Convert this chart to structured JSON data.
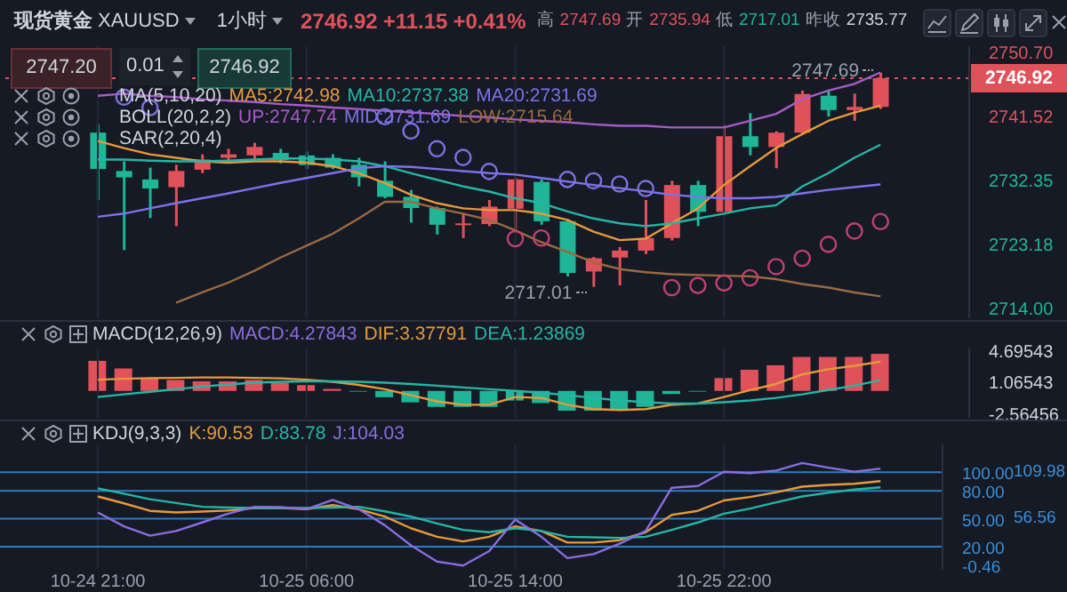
{
  "chart_data": [
    {
      "type": "candlestick",
      "title": "现货黄金",
      "subtitle": "XAUUSD",
      "categories": [
        null,
        null,
        null,
        null,
        null,
        null,
        null,
        null,
        null,
        null,
        null,
        null,
        null,
        null,
        null,
        null,
        null,
        null,
        null,
        null,
        null,
        null,
        null,
        null,
        null,
        null,
        null,
        null,
        null,
        null,
        null
      ],
      "ohlc": [
        [
          2739.11,
          2740.3,
          2729.45,
          2733.9
        ],
        [
          2733.61,
          2735.0,
          2722.28,
          2732.69
        ],
        [
          2732.4,
          2734.1,
          2726.85,
          2731.1
        ],
        [
          2731.29,
          2734.5,
          2725.7,
          2733.61
        ],
        [
          2733.8,
          2736.0,
          2733.3,
          2735.25
        ],
        [
          2735.5,
          2736.8,
          2735.0,
          2736.0
        ],
        [
          2735.85,
          2737.66,
          2735.0,
          2737.06
        ],
        [
          2736.2,
          2736.8,
          2734.7,
          2735.2
        ],
        [
          2735.85,
          2736.4,
          2733.9,
          2734.45
        ],
        [
          2735.5,
          2736.0,
          2733.9,
          2734.1
        ],
        [
          2734.5,
          2735.5,
          2731.4,
          2732.7
        ],
        [
          2732.2,
          2735.0,
          2729.7,
          2729.9
        ],
        [
          2729.9,
          2730.9,
          2726.2,
          2728.3
        ],
        [
          2728.3,
          2728.5,
          2724.5,
          2725.9
        ],
        [
          2726.0,
          2727.6,
          2724.0,
          2726.1
        ],
        [
          2726.0,
          2729.45,
          2725.7,
          2728.5
        ],
        [
          2728.2,
          2732.6,
          2725.25,
          2732.4
        ],
        [
          2732.05,
          2732.4,
          2725.9,
          2726.4
        ],
        [
          2726.4,
          2726.7,
          2718.5,
          2719.0
        ],
        [
          2719.2,
          2721.3,
          2717.01,
          2721.1
        ],
        [
          2721.2,
          2722.7,
          2717.2,
          2722.2
        ],
        [
          2722.2,
          2729.45,
          2721.7,
          2724.0
        ],
        [
          2724.0,
          2732.2,
          2723.65,
          2731.6
        ],
        [
          2731.6,
          2732.2,
          2725.7,
          2727.75
        ],
        [
          2727.75,
          2740.2,
          2727.5,
          2738.6
        ],
        [
          2738.6,
          2741.9,
          2735.85,
          2737.05
        ],
        [
          2737.05,
          2739.3,
          2734.0,
          2739.1
        ],
        [
          2739.1,
          2745.15,
          2738.9,
          2744.65
        ],
        [
          2744.4,
          2745.15,
          2741.4,
          2742.35
        ],
        [
          2742.35,
          2744.7,
          2740.8,
          2742.8
        ],
        [
          2742.8,
          2747.69,
          2742.5,
          2746.92
        ]
      ],
      "series": [
        {
          "name": "MA5:2742.98",
          "type": "line",
          "color": "#e59a3c",
          "values": [
            2737.9,
            2736.9,
            2736.0,
            2735.5,
            2735.0,
            2734.8,
            2735.0,
            2735.0,
            2734.8,
            2734.3,
            2733.3,
            2731.9,
            2730.2,
            2729.0,
            2728.25,
            2728.0,
            2728.0,
            2727.5,
            2726.6,
            2724.9,
            2723.7,
            2723.9,
            2726.1,
            2728.25,
            2731.6,
            2734.3,
            2736.9,
            2738.9,
            2740.8,
            2742.0,
            2742.98
          ]
        },
        {
          "name": "MA10:2737.38",
          "type": "line",
          "color": "#26b5a5",
          "values": [
            2735.25,
            2735.25,
            2735.1,
            2735.0,
            2735.0,
            2735.1,
            2735.25,
            2735.4,
            2735.4,
            2735.25,
            2735.0,
            2734.3,
            2733.3,
            2732.35,
            2731.4,
            2730.66,
            2729.7,
            2729.0,
            2727.8,
            2726.8,
            2726.1,
            2725.7,
            2726.1,
            2726.8,
            2727.5,
            2728.25,
            2728.7,
            2731.4,
            2733.3,
            2735.5,
            2737.38
          ]
        },
        {
          "name": "MA20:2731.69",
          "type": "line",
          "color": "#7b73e8",
          "values": [
            2727.04,
            2727.5,
            2728.25,
            2729.0,
            2729.7,
            2730.4,
            2731.15,
            2731.9,
            2732.6,
            2733.3,
            2734.0,
            2734.3,
            2734.2,
            2733.9,
            2733.6,
            2733.3,
            2733.1,
            2732.6,
            2732.1,
            2731.6,
            2731.15,
            2730.7,
            2730.2,
            2729.9,
            2729.7,
            2729.7,
            2729.9,
            2730.4,
            2730.9,
            2731.3,
            2731.69
          ]
        },
        {
          "name": "UP:2747.74",
          "type": "line",
          "color": "#a75cc5",
          "values": [
            2744.4,
            2744.7,
            2744.4,
            2744.2,
            2743.9,
            2743.7,
            2743.5,
            2743.2,
            2743.0,
            2742.7,
            2742.5,
            2742.25,
            2742.0,
            2741.8,
            2741.5,
            2741.3,
            2741.0,
            2740.8,
            2740.6,
            2740.3,
            2740.1,
            2740.1,
            2739.85,
            2739.85,
            2739.85,
            2740.8,
            2741.8,
            2743.9,
            2745.15,
            2746.1,
            2747.74
          ]
        },
        {
          "name": "LOW:2715.64",
          "type": "line",
          "color": "#9a6a40",
          "values": [
            null,
            null,
            null,
            2714.7,
            2716.2,
            2717.6,
            2719.3,
            2721.2,
            2722.9,
            2724.6,
            2726.8,
            2729.2,
            2729.2,
            2728.25,
            2727.5,
            2726.6,
            2725.1,
            2723.4,
            2722.0,
            2720.5,
            2719.55,
            2719.1,
            2718.8,
            2718.7,
            2718.6,
            2718.5,
            2718.1,
            2717.4,
            2716.9,
            2716.2,
            2715.64
          ]
        },
        {
          "type": "scatter",
          "color": "#8070e0",
          "values": [
            null,
            2744.2,
            2742.7,
            null,
            null,
            null,
            null,
            null,
            null,
            null,
            null,
            2741.4,
            2739.35,
            2736.8,
            2735.55,
            2733.55,
            null,
            null,
            2732.4,
            2732.2,
            2731.75,
            2731.1,
            null,
            null,
            null,
            null,
            null,
            null,
            null,
            null,
            null
          ]
        },
        {
          "type": "scatter",
          "color": "#c0406e",
          "values": [
            null,
            null,
            null,
            null,
            null,
            null,
            null,
            null,
            null,
            null,
            null,
            null,
            null,
            null,
            null,
            null,
            2723.9,
            2724.0,
            null,
            null,
            null,
            null,
            2716.9,
            2717.2,
            2717.55,
            2718.3,
            2719.9,
            2721.1,
            2723.1,
            2725.0,
            2726.36
          ]
        }
      ],
      "ylim": [
        2712.5,
        2751.5
      ],
      "yticks": [
        {
          "value": 2714,
          "label": "2714.00"
        },
        2723.18,
        2732.35,
        2741.52,
        {
          "value": 2750.7,
          "label": "2750.70"
        }
      ],
      "ref_lines": [
        {
          "axis": "y",
          "value": 2746.92,
          "label": "2746.92",
          "color": "#e0525a",
          "line_style": "dotted"
        }
      ],
      "annotations": [
        "1小时",
        "2746.92",
        "+11.15",
        "+0.41%",
        "高",
        "2747.69",
        "开",
        "2735.94",
        "低",
        "2717.01",
        "昨收",
        "2735.77",
        "2747.20",
        "0.01",
        "2746.92",
        "MA(5,10,20)",
        "BOLL(20,2,2)",
        "MID:2731.69",
        "SAR(2,20,4)",
        {
          "text": "2747.69",
          "y": 2747.69
        },
        "2717.01"
      ],
      "grid": "x",
      "tick_labels": "y"
    },
    {
      "type": "bar",
      "categories": [
        null,
        null,
        null,
        null,
        null,
        null,
        null,
        null,
        null,
        null,
        null,
        null,
        null,
        null,
        null,
        null,
        null,
        null,
        null,
        null,
        null,
        null,
        null,
        null,
        null,
        null,
        null,
        null,
        null,
        null,
        null
      ],
      "series": [
        {
          "name": "MACD:4.27843",
          "colors": [
            "#e0525a",
            "#e0525a",
            "#e0525a",
            "#e0525a",
            "#e0525a",
            "#e0525a",
            "#e0525a",
            "#e0525a",
            "#e0525a",
            "#e0525a",
            "#1fb596",
            "#1fb596",
            "#1fb596",
            "#1fb596",
            "#1fb596",
            "#1fb596",
            "#1fb596",
            "#1fb596",
            "#1fb596",
            "#1fb596",
            "#1fb596",
            "#1fb596",
            "#1fb596",
            "#1fb596",
            "#e0525a",
            "#e0525a",
            "#e0525a",
            "#e0525a",
            "#e0525a",
            "#e0525a",
            "#e0525a"
          ],
          "values": [
            3.47,
            2.59,
            1.48,
            1.27,
            1.11,
            1.11,
            1.27,
            0.96,
            0.67,
            0.23,
            -0.08,
            -0.73,
            -1.32,
            -1.84,
            -1.84,
            -1.84,
            -1.11,
            -1.4,
            -2.28,
            -2.28,
            -2.28,
            -1.84,
            -0.36,
            -0.08,
            1.48,
            2.44,
            2.96,
            3.92,
            3.92,
            3.92,
            4.27843
          ]
        },
        {
          "name": "DIF:3.37791",
          "type": "line",
          "color": "#e59a3c",
          "values": [
            1.3,
            1.4,
            1.48,
            1.5,
            1.55,
            1.55,
            1.5,
            1.45,
            1.3,
            1.05,
            0.7,
            0.2,
            -0.5,
            -1.2,
            -1.6,
            -1.6,
            -0.7,
            -0.8,
            -1.6,
            -2.1,
            -2.2,
            -2.1,
            -1.6,
            -1.45,
            -0.7,
            0.1,
            0.8,
            1.9,
            2.5,
            2.9,
            3.37791
          ]
        },
        {
          "name": "DEA:1.23869",
          "type": "line",
          "color": "#26b5a5",
          "values": [
            -0.7,
            -0.4,
            -0.1,
            0.2,
            0.5,
            0.75,
            0.95,
            1.05,
            1.1,
            1.1,
            1.05,
            0.95,
            0.8,
            0.6,
            0.4,
            0.2,
            0.0,
            -0.2,
            -0.5,
            -0.8,
            -1.1,
            -1.3,
            -1.45,
            -1.46,
            -1.3,
            -1.1,
            -0.8,
            -0.4,
            0.1,
            0.6,
            1.23869
          ]
        }
      ],
      "ylim": [
        -3.1,
        4.9
      ],
      "yticks": [
        -2.56456,
        1.06543,
        4.69543
      ],
      "annotations": [
        "MACD(12,26,9)"
      ],
      "grid": "x",
      "tick_labels": "y"
    },
    {
      "type": "line",
      "categories": [
        "10-24 21:00",
        null,
        null,
        null,
        null,
        null,
        null,
        null,
        "10-25 06:00",
        null,
        null,
        null,
        null,
        null,
        null,
        null,
        "10-25 14:00",
        null,
        null,
        null,
        null,
        null,
        null,
        null,
        "10-25 22:00",
        null,
        null,
        null,
        null,
        null,
        null
      ],
      "series": [
        {
          "name": "K:90.53",
          "color": "#e59a3c",
          "values": [
            74,
            66.6,
            58.5,
            56.8,
            57.8,
            58.8,
            61.6,
            61.6,
            60.3,
            64.7,
            60.3,
            52.3,
            39.8,
            30.6,
            25.6,
            30.6,
            41.8,
            36.8,
            24.4,
            24.4,
            26.9,
            35.5,
            54.2,
            58.5,
            69.7,
            73.4,
            78.4,
            84.5,
            86.5,
            87.7,
            90.53
          ]
        },
        {
          "name": "D:83.78",
          "color": "#26b5a5",
          "values": [
            82.7,
            77,
            71,
            67,
            62.9,
            62,
            61.6,
            61.6,
            61.6,
            62,
            62.9,
            58,
            52.3,
            45,
            38,
            35.5,
            39.8,
            36.8,
            30.6,
            30,
            29.4,
            30.6,
            38,
            46,
            55.5,
            61,
            67.7,
            74,
            78,
            81.4,
            83.78
          ]
        },
        {
          "name": "J:104.03",
          "color": "#8a6de0",
          "values": [
            56.8,
            41.8,
            31.8,
            36.8,
            46,
            55.5,
            62.9,
            62.5,
            60.3,
            70.3,
            60.3,
            43,
            21.3,
            3.9,
            -0.46,
            15.2,
            49.2,
            30.6,
            7.6,
            11.9,
            23.2,
            36.8,
            83.4,
            85.2,
            100.6,
            99.1,
            101.9,
            109.98,
            105,
            100.6,
            104.03
          ]
        }
      ],
      "ylim": [
        -4,
        130
      ],
      "yticks": [
        -0.46,
        {
          "value": 20,
          "label": "20.00"
        },
        {
          "value": 50,
          "label": "50.00"
        },
        {
          "value": 80,
          "label": "80.00"
        },
        {
          "value": 100,
          "label": "100.00"
        }
      ],
      "ref_lines": [
        {
          "axis": "y",
          "value": 100,
          "color": "#2a7fc0"
        },
        {
          "axis": "y",
          "value": 80,
          "color": "#2a7fc0"
        },
        {
          "axis": "y",
          "value": 50,
          "color": "#2a7fc0"
        },
        {
          "axis": "y",
          "value": 20,
          "color": "#2a7fc0"
        }
      ],
      "annotations": [
        "KDJ(9,3,3)",
        "109.98",
        "56.56"
      ],
      "grid": "x"
    }
  ]
}
